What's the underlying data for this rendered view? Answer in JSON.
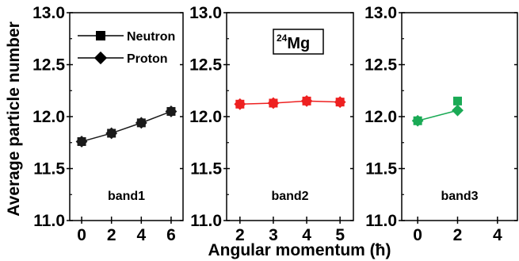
{
  "chart_data": {
    "type": "scatter",
    "title": "24Mg",
    "title_parts": {
      "mass": "24",
      "element": "Mg"
    },
    "xlabel": "Angular momentum (ħ)",
    "ylabel": "Average particle number",
    "ylim": [
      11.0,
      13.0
    ],
    "yticks": [
      "11.0",
      "11.5",
      "12.0",
      "12.5",
      "13.0"
    ],
    "legend": {
      "placement": "top-left of first panel",
      "entries": [
        {
          "name": "Neutron",
          "marker": "square"
        },
        {
          "name": "Proton",
          "marker": "diamond"
        }
      ]
    },
    "panels": [
      {
        "label": "band1",
        "color": "#1a1a1a",
        "xlim": [
          -0.8,
          6.8
        ],
        "xticks": [
          "0",
          "2",
          "4",
          "6"
        ],
        "x": [
          0,
          2,
          4,
          6
        ],
        "series": [
          {
            "name": "Neutron",
            "values": [
              11.76,
              11.84,
              11.94,
              12.05
            ]
          },
          {
            "name": "Proton",
            "values": [
              11.76,
              11.84,
              11.94,
              12.05
            ]
          }
        ]
      },
      {
        "label": "band2",
        "color": "#ee2020",
        "xlim": [
          1.6,
          5.4
        ],
        "xticks": [
          "2",
          "3",
          "4",
          "5"
        ],
        "x": [
          2,
          3,
          4,
          5
        ],
        "series": [
          {
            "name": "Neutron",
            "values": [
              12.12,
              12.13,
              12.15,
              12.14
            ]
          },
          {
            "name": "Proton",
            "values": [
              12.12,
              12.13,
              12.15,
              12.14
            ]
          }
        ]
      },
      {
        "label": "band3",
        "color": "#1aaa55",
        "xlim": [
          -0.8,
          5.0
        ],
        "xticks": [
          "0",
          "2",
          "4"
        ],
        "x": [
          0,
          2
        ],
        "series": [
          {
            "name": "Neutron",
            "values": [
              11.96,
              12.15
            ]
          },
          {
            "name": "Proton",
            "values": [
              11.96,
              12.06
            ]
          }
        ]
      }
    ]
  }
}
